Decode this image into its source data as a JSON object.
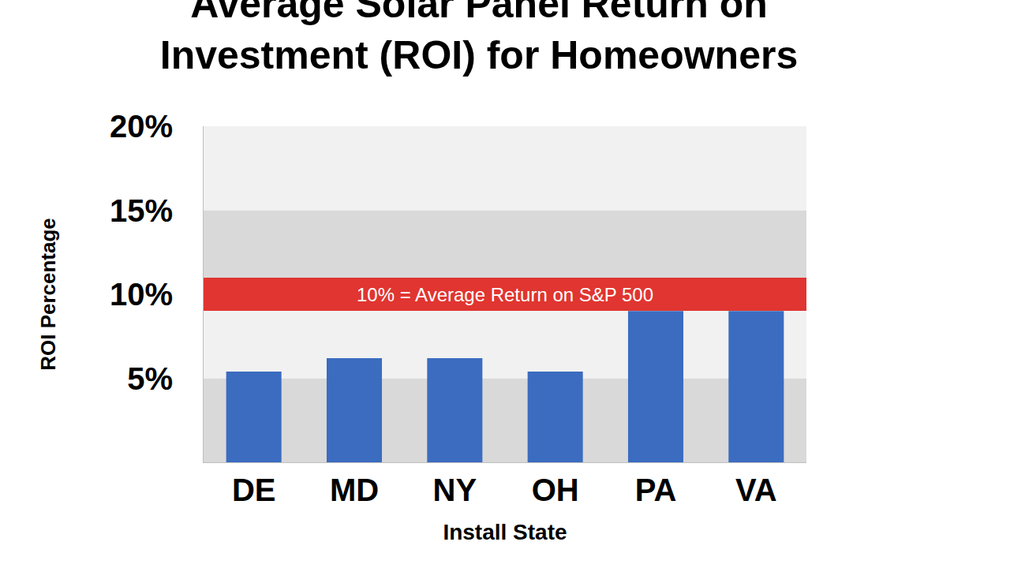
{
  "chart_data": {
    "type": "bar",
    "title": "Average Solar Panel Return on Investment (ROI) for Homeowners",
    "xlabel": "Install State",
    "ylabel": "ROI Percentage",
    "categories": [
      "DE",
      "MD",
      "NY",
      "OH",
      "PA",
      "VA"
    ],
    "values": [
      5.4,
      6.2,
      6.2,
      5.4,
      9,
      9
    ],
    "color": "#3b6cc0",
    "ylim": [
      0,
      20
    ],
    "yticks": [
      {
        "value": 5,
        "label": "5%"
      },
      {
        "value": 10,
        "label": "10%"
      },
      {
        "value": 15,
        "label": "15%"
      },
      {
        "value": 20,
        "label": "20%"
      }
    ],
    "grid": true,
    "annotations": [
      {
        "text": "10% = Average Return on S&P 500",
        "y": 10,
        "color": "#e03530"
      }
    ]
  }
}
